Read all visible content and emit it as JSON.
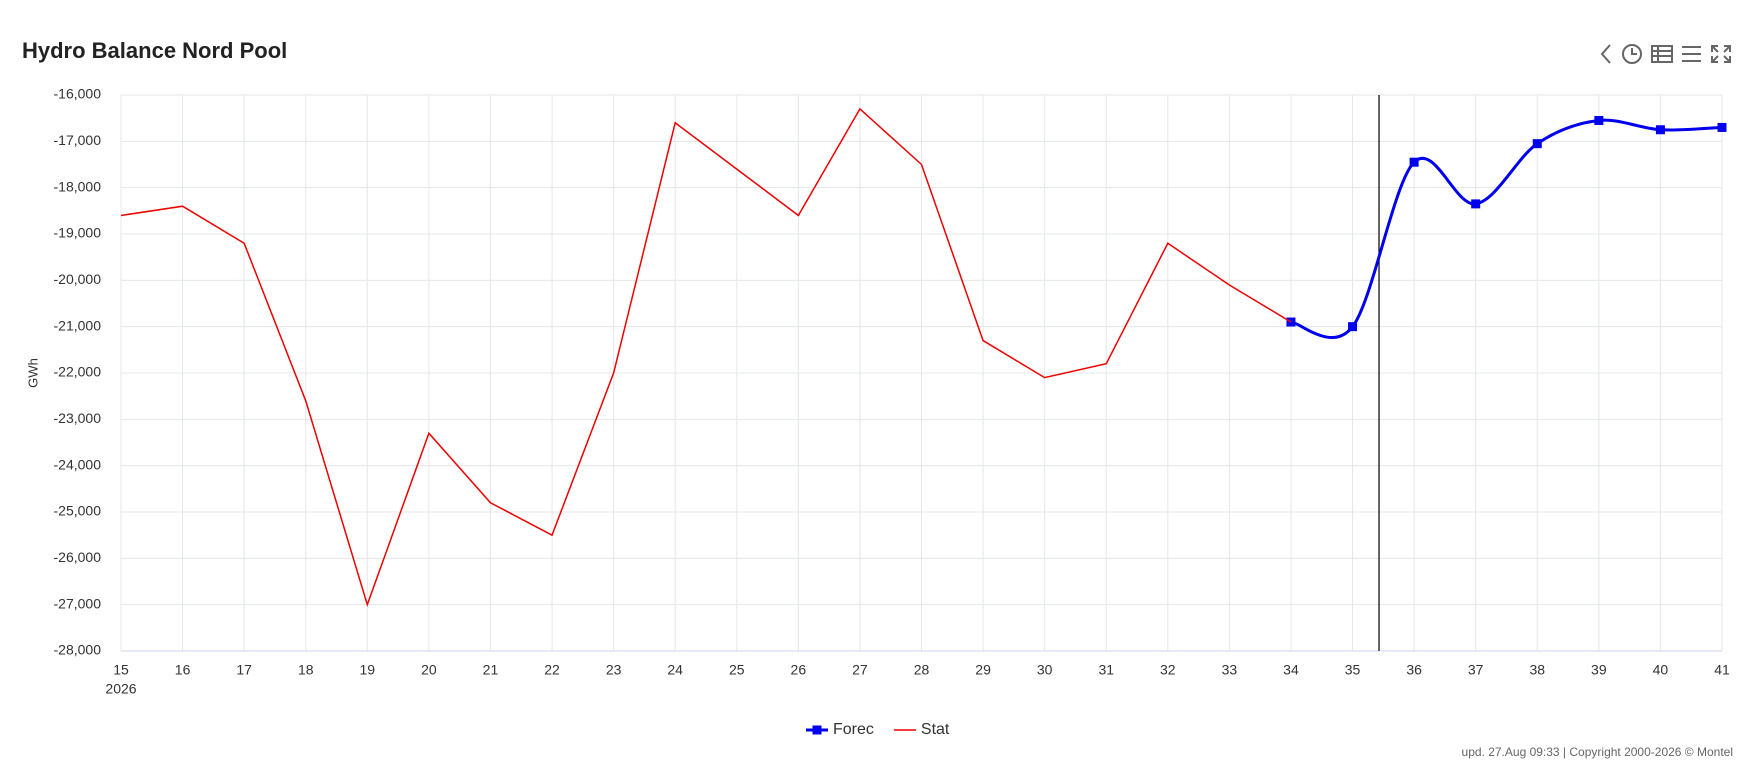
{
  "chart_data": {
    "type": "line",
    "title": "Hydro Balance Nord Pool",
    "y_label": "GWh",
    "x_sublabel": "2026",
    "footer": "upd. 27.Aug 09:33 | Copyright 2000-2026 © Montel",
    "x": [
      15,
      16,
      17,
      18,
      19,
      20,
      21,
      22,
      23,
      24,
      25,
      26,
      27,
      28,
      29,
      30,
      31,
      32,
      33,
      34,
      35,
      36,
      37,
      38,
      39,
      40,
      41
    ],
    "series": [
      {
        "name": "Forec",
        "color": "#0000ee",
        "smooth": true,
        "markers": true,
        "values": [
          null,
          null,
          null,
          null,
          null,
          null,
          null,
          null,
          null,
          null,
          null,
          null,
          null,
          null,
          null,
          null,
          null,
          null,
          null,
          -20900,
          -21000,
          -17450,
          -18350,
          -17050,
          -16550,
          -16750,
          -16700
        ]
      },
      {
        "name": "Stat",
        "color": "#ee0000",
        "smooth": false,
        "markers": false,
        "values": [
          -18600,
          -18400,
          -19200,
          -22600,
          -27000,
          -23300,
          -24800,
          -25500,
          -22000,
          -16600,
          -17600,
          -18600,
          -16300,
          -17500,
          -21300,
          -22100,
          -21800,
          -19200,
          -20100,
          -20900,
          null,
          null,
          null,
          null,
          null,
          null,
          null
        ]
      }
    ],
    "xlim": [
      15,
      41
    ],
    "xticks": [
      15,
      16,
      17,
      18,
      19,
      20,
      21,
      22,
      23,
      24,
      25,
      26,
      27,
      28,
      29,
      30,
      31,
      32,
      33,
      34,
      35,
      36,
      37,
      38,
      39,
      40,
      41
    ],
    "ylim": [
      -28000,
      -16000
    ],
    "yticks": [
      {
        "value": -28000,
        "label": "-28,000"
      },
      {
        "value": -27000,
        "label": "-27,000"
      },
      {
        "value": -26000,
        "label": "-26,000"
      },
      {
        "value": -25000,
        "label": "-25,000"
      },
      {
        "value": -24000,
        "label": "-24,000"
      },
      {
        "value": -23000,
        "label": "-23,000"
      },
      {
        "value": -22000,
        "label": "-22,000"
      },
      {
        "value": -21000,
        "label": "-21,000"
      },
      {
        "value": -20000,
        "label": "-20,000"
      },
      {
        "value": -19000,
        "label": "-19,000"
      },
      {
        "value": -18000,
        "label": "-18,000"
      },
      {
        "value": -17000,
        "label": "-17,000"
      },
      {
        "value": -16000,
        "label": "-16,000"
      }
    ],
    "plot_line_x": 35.43,
    "grid": true
  }
}
